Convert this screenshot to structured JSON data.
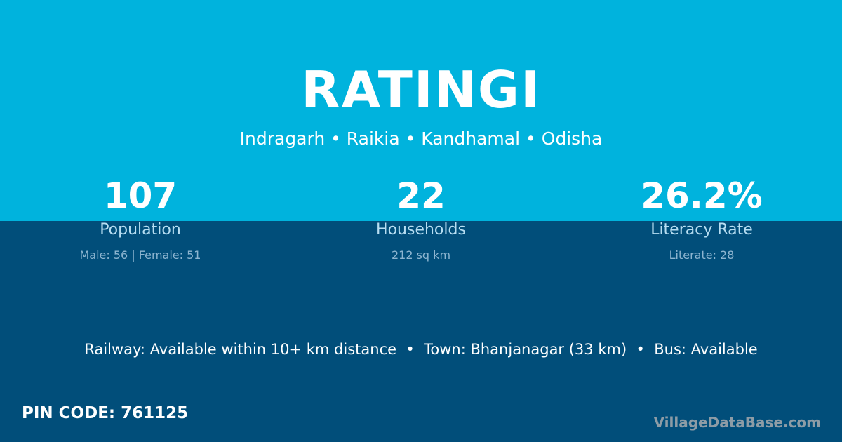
{
  "title": "RATINGI",
  "location": "Indragarh • Raikia • Kandhamal • Odisha",
  "stats": [
    {
      "value": "107",
      "label": "Population",
      "detail": "Male: 56 | Female: 51"
    },
    {
      "value": "22",
      "label": "Households",
      "detail": "212 sq km"
    },
    {
      "value": "26.2%",
      "label": "Literacy Rate",
      "detail": "Literate: 28"
    }
  ],
  "info": "Railway: Available within 10+ km distance  •  Town: Bhanjanagar (33 km)  •  Bus: Available",
  "pin": "PIN CODE: 761125",
  "watermark": "VillageDataBase.com",
  "colors": {
    "top": "#00b3dd",
    "bottom": "#014e7a"
  }
}
